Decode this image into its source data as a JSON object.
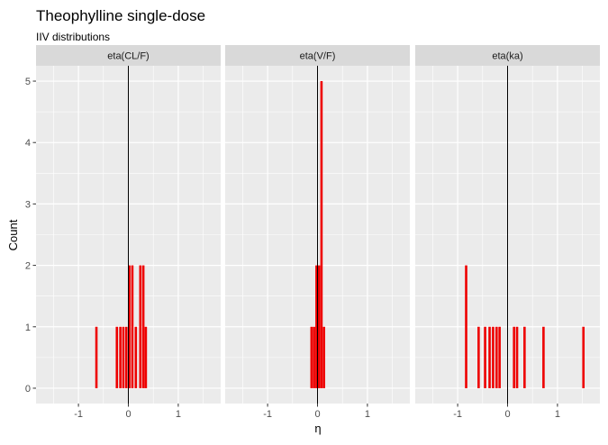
{
  "chart_data": {
    "type": "bar",
    "title": "Theophylline single-dose",
    "subtitle": "IIV distributions",
    "xlabel": "η",
    "ylabel": "Count",
    "xlim": [
      -1.85,
      1.85
    ],
    "ylim": [
      -0.25,
      5.25
    ],
    "x_ticks": [
      -1,
      0,
      1
    ],
    "x_tick_labels": [
      "-1",
      "0",
      "1"
    ],
    "y_ticks": [
      0,
      1,
      2,
      3,
      4,
      5
    ],
    "y_tick_labels": [
      "0",
      "1",
      "2",
      "3",
      "4",
      "5"
    ],
    "bin_width": 0.05,
    "grid": true,
    "reference_line_x": 0,
    "bar_color": "#ee0000",
    "panel_background": "#ebebeb",
    "strip_background": "#d9d9d9",
    "panels": [
      {
        "label": "eta(CL/F)",
        "bins": [
          {
            "x": -0.64,
            "count": 1
          },
          {
            "x": -0.23,
            "count": 1
          },
          {
            "x": -0.16,
            "count": 1
          },
          {
            "x": -0.1,
            "count": 1
          },
          {
            "x": -0.04,
            "count": 1
          },
          {
            "x": 0.02,
            "count": 2
          },
          {
            "x": 0.08,
            "count": 2
          },
          {
            "x": 0.15,
            "count": 1
          },
          {
            "x": 0.24,
            "count": 2
          },
          {
            "x": 0.3,
            "count": 2
          },
          {
            "x": 0.35,
            "count": 1
          }
        ]
      },
      {
        "label": "eta(V/F)",
        "bins": [
          {
            "x": -0.12,
            "count": 1
          },
          {
            "x": -0.07,
            "count": 1
          },
          {
            "x": -0.02,
            "count": 2
          },
          {
            "x": 0.03,
            "count": 2
          },
          {
            "x": 0.08,
            "count": 5
          },
          {
            "x": 0.13,
            "count": 1
          }
        ]
      },
      {
        "label": "eta(ka)",
        "bins": [
          {
            "x": -0.83,
            "count": 2
          },
          {
            "x": -0.58,
            "count": 1
          },
          {
            "x": -0.45,
            "count": 1
          },
          {
            "x": -0.36,
            "count": 1
          },
          {
            "x": -0.29,
            "count": 1
          },
          {
            "x": -0.22,
            "count": 1
          },
          {
            "x": -0.16,
            "count": 1
          },
          {
            "x": 0.13,
            "count": 1
          },
          {
            "x": 0.19,
            "count": 1
          },
          {
            "x": 0.34,
            "count": 1
          },
          {
            "x": 0.72,
            "count": 1
          },
          {
            "x": 1.52,
            "count": 1
          }
        ]
      }
    ]
  }
}
